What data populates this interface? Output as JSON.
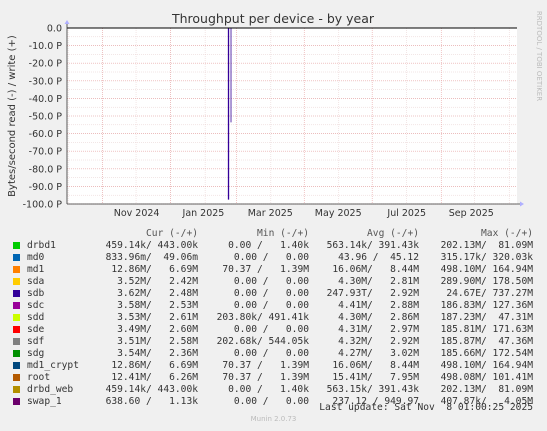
{
  "chart_data": {
    "type": "line",
    "title": "Throughput per device - by year",
    "ylabel": "Bytes/second read (-) / write (+)",
    "side_label": "RRDTOOL / TOBI OETIKER",
    "yticks": [
      "0.0",
      "-10.0 P",
      "-20.0 P",
      "-30.0 P",
      "-40.0 P",
      "-50.0 P",
      "-60.0 P",
      "-70.0 P",
      "-80.0 P",
      "-90.0 P",
      "-100.0 P"
    ],
    "ytick_values": [
      0,
      -10,
      -20,
      -30,
      -40,
      -50,
      -60,
      -70,
      -80,
      -90,
      -100
    ],
    "ylim": [
      -100,
      0
    ],
    "yunit": "P",
    "xticks": [
      "Nov 2024",
      "Jan 2025",
      "Mar 2025",
      "May 2025",
      "Jul 2025",
      "Sep 2025"
    ],
    "xtick_dates": [
      "2024-11-01",
      "2025-01-01",
      "2025-03-01",
      "2025-05-01",
      "2025-07-01",
      "2025-09-01"
    ],
    "xlim": [
      "2024-09-30",
      "2025-11-08"
    ],
    "grid": true,
    "spike": {
      "series": "sdb",
      "date": "2025-02-22",
      "value": -97.5
    },
    "series": [
      {
        "name": "drbd1",
        "color": "#00cc00"
      },
      {
        "name": "md0",
        "color": "#0066b3"
      },
      {
        "name": "md1",
        "color": "#ff8000"
      },
      {
        "name": "sda",
        "color": "#ffcc00"
      },
      {
        "name": "sdb",
        "color": "#330099"
      },
      {
        "name": "sdc",
        "color": "#990099"
      },
      {
        "name": "sdd",
        "color": "#ccff00"
      },
      {
        "name": "sde",
        "color": "#ff0000"
      },
      {
        "name": "sdf",
        "color": "#808080"
      },
      {
        "name": "sdg",
        "color": "#008f00"
      },
      {
        "name": "md1_crypt",
        "color": "#00487d"
      },
      {
        "name": "root",
        "color": "#b35a00"
      },
      {
        "name": "drbd_web",
        "color": "#b38f00"
      },
      {
        "name": "swap_1",
        "color": "#6b006b"
      }
    ]
  },
  "legend": {
    "headers": {
      "cur": "Cur (-/+)",
      "min": "Min (-/+)",
      "avg": "Avg (-/+)",
      "max": "Max (-/+)"
    },
    "rows": [
      {
        "name": "drbd1",
        "color": "#00cc00",
        "cur": "459.14k/ 443.00k",
        "min": "0.00 /   1.40k",
        "avg": "563.14k/ 391.43k",
        "max": "202.13M/  81.09M"
      },
      {
        "name": "md0",
        "color": "#0066b3",
        "cur": "833.96m/  49.06m",
        "min": "0.00 /   0.00",
        "avg": "43.96 /  45.12",
        "max": "315.17k/ 320.03k"
      },
      {
        "name": "md1",
        "color": "#ff8000",
        "cur": "12.86M/   6.69M",
        "min": "70.37 /   1.39M",
        "avg": "16.06M/   8.44M",
        "max": "498.10M/ 164.94M"
      },
      {
        "name": "sda",
        "color": "#ffcc00",
        "cur": "3.52M/   2.42M",
        "min": "0.00 /   0.00",
        "avg": "4.30M/   2.81M",
        "max": "289.90M/ 178.50M"
      },
      {
        "name": "sdb",
        "color": "#330099",
        "cur": "3.62M/   2.48M",
        "min": "0.00 /   0.00",
        "avg": "247.93T/   2.92M",
        "max": "24.67E/ 737.27M"
      },
      {
        "name": "sdc",
        "color": "#990099",
        "cur": "3.58M/   2.53M",
        "min": "0.00 /   0.00",
        "avg": "4.41M/   2.88M",
        "max": "186.83M/ 127.36M"
      },
      {
        "name": "sdd",
        "color": "#ccff00",
        "cur": "3.53M/   2.61M",
        "min": "203.80k/ 491.41k",
        "avg": "4.30M/   2.86M",
        "max": "187.23M/  47.31M"
      },
      {
        "name": "sde",
        "color": "#ff0000",
        "cur": "3.49M/   2.60M",
        "min": "0.00 /   0.00",
        "avg": "4.31M/   2.97M",
        "max": "185.81M/ 171.63M"
      },
      {
        "name": "sdf",
        "color": "#808080",
        "cur": "3.51M/   2.58M",
        "min": "202.68k/ 544.05k",
        "avg": "4.32M/   2.92M",
        "max": "185.87M/  47.36M"
      },
      {
        "name": "sdg",
        "color": "#008f00",
        "cur": "3.54M/   2.36M",
        "min": "0.00 /   0.00",
        "avg": "4.27M/   3.02M",
        "max": "185.66M/ 172.54M"
      },
      {
        "name": "md1_crypt",
        "color": "#00487d",
        "cur": "12.86M/   6.69M",
        "min": "70.37 /   1.39M",
        "avg": "16.06M/   8.44M",
        "max": "498.10M/ 164.94M"
      },
      {
        "name": "root",
        "color": "#b35a00",
        "cur": "12.41M/   6.26M",
        "min": "70.37 /   1.39M",
        "avg": "15.41M/   7.95M",
        "max": "498.08M/ 101.41M"
      },
      {
        "name": "drbd_web",
        "color": "#b38f00",
        "cur": "459.14k/ 443.00k",
        "min": "0.00 /   1.40k",
        "avg": "563.15k/ 391.43k",
        "max": "202.13M/  81.09M"
      },
      {
        "name": "swap_1",
        "color": "#6b006b",
        "cur": "638.60 /   1.13k",
        "min": "0.00 /   0.00",
        "avg": "237.12 / 949.97",
        "max": "407.87k/   4.05M"
      }
    ]
  },
  "last_update": "Last update: Sat Nov  8 01:00:25 2025",
  "footer": "Munin 2.0.73"
}
